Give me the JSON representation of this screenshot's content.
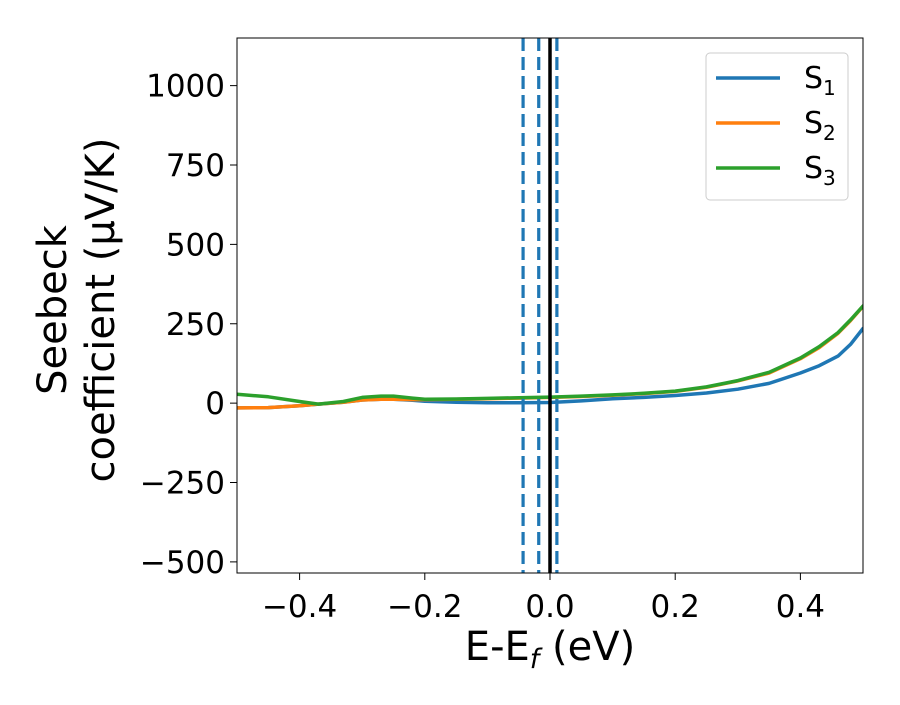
{
  "chart_data": {
    "type": "line",
    "xlabel_base": "E-E",
    "xlabel_sub": "f",
    "xlabel_unit": " (eV)",
    "ylabel_line1": "Seebeck",
    "ylabel_line2": "coefficient  (μV/K)",
    "xlim": [
      -0.5,
      0.5
    ],
    "ylim": [
      -535,
      1150
    ],
    "xticks": [
      -0.4,
      -0.2,
      0.0,
      0.2,
      0.4
    ],
    "xtick_labels": [
      "−0.4",
      "−0.2",
      "0.0",
      "0.2",
      "0.4"
    ],
    "yticks": [
      -500,
      -250,
      0,
      250,
      500,
      750,
      1000
    ],
    "ytick_labels": [
      "−500",
      "−250",
      "0",
      "250",
      "500",
      "750",
      "1000"
    ],
    "grid": false,
    "legend_position": "top-right",
    "series": [
      {
        "name": "S1",
        "label_base": "S",
        "label_sub": "1",
        "color": "#1f77b4",
        "x": [
          -0.5,
          -0.45,
          -0.4,
          -0.37,
          -0.33,
          -0.3,
          -0.27,
          -0.25,
          -0.22,
          -0.2,
          -0.15,
          -0.1,
          -0.05,
          0.0,
          0.05,
          0.1,
          0.15,
          0.2,
          0.25,
          0.3,
          0.35,
          0.4,
          0.43,
          0.46,
          0.48,
          0.5
        ],
        "y": [
          -15,
          -14,
          -8,
          -3,
          3,
          10,
          12,
          12,
          9,
          6,
          3,
          1,
          1,
          2,
          7,
          14,
          18,
          24,
          32,
          44,
          62,
          95,
          118,
          148,
          185,
          235
        ]
      },
      {
        "name": "S2",
        "label_base": "S",
        "label_sub": "2",
        "color": "#ff7f0e",
        "x": [
          -0.5,
          -0.45,
          -0.4,
          -0.37,
          -0.33,
          -0.3,
          -0.27,
          -0.25,
          -0.22,
          -0.2,
          -0.15,
          -0.1,
          -0.05,
          0.0,
          0.05,
          0.1,
          0.15,
          0.2,
          0.25,
          0.3,
          0.35,
          0.4,
          0.43,
          0.46,
          0.48,
          0.5
        ],
        "y": [
          -15,
          -14,
          -8,
          -3,
          3,
          10,
          12,
          12,
          11,
          11,
          12,
          14,
          16,
          18,
          21,
          25,
          30,
          37,
          50,
          70,
          95,
          140,
          175,
          220,
          260,
          305
        ]
      },
      {
        "name": "S3",
        "label_base": "S",
        "label_sub": "3",
        "color": "#2ca02c",
        "x": [
          -0.5,
          -0.45,
          -0.4,
          -0.37,
          -0.33,
          -0.3,
          -0.27,
          -0.25,
          -0.22,
          -0.2,
          -0.15,
          -0.1,
          -0.05,
          0.0,
          0.05,
          0.1,
          0.15,
          0.2,
          0.25,
          0.3,
          0.35,
          0.4,
          0.43,
          0.46,
          0.48,
          0.5
        ],
        "y": [
          28,
          20,
          5,
          -3,
          5,
          18,
          22,
          22,
          16,
          12,
          13,
          15,
          17,
          19,
          22,
          26,
          31,
          38,
          51,
          71,
          97,
          142,
          178,
          222,
          262,
          306
        ]
      }
    ],
    "vlines": [
      {
        "x": -0.043,
        "style": "dashed",
        "color": "#1f77b4"
      },
      {
        "x": -0.018,
        "style": "dashed",
        "color": "#1f77b4"
      },
      {
        "x": 0.011,
        "style": "dashed",
        "color": "#1f77b4"
      },
      {
        "x": 0.0,
        "style": "solid",
        "color": "#000000"
      }
    ]
  }
}
